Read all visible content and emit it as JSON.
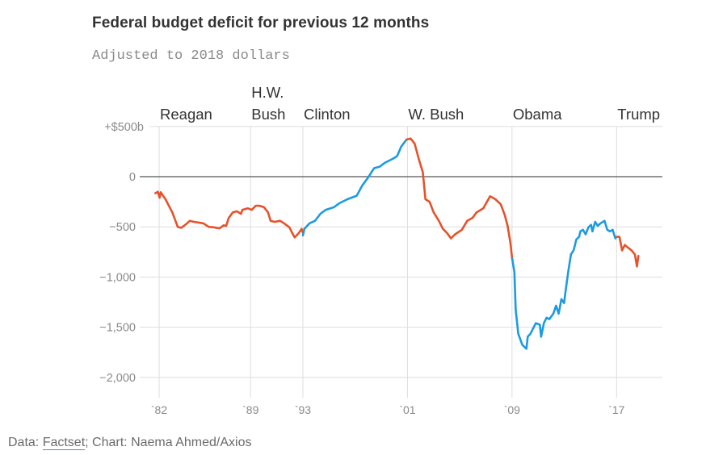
{
  "title": "Federal budget deficit for previous 12 months",
  "subtitle": "Adjusted to 2018 dollars",
  "footer": {
    "prefix": "Data: ",
    "link_label": "Factset",
    "suffix": "; Chart: Naema Ahmed/Axios"
  },
  "colors": {
    "democrat": "#1d9be0",
    "republican": "#e5522b",
    "link_underline": "#1d9be0"
  },
  "chart_data": {
    "type": "line",
    "title": "Federal budget deficit for previous 12 months",
    "subtitle": "Adjusted to 2018 dollars",
    "xlabel": "",
    "ylabel": "",
    "xlim": [
      1980.5,
      2020.5
    ],
    "ylim": [
      -2000,
      500
    ],
    "grid": true,
    "legend": "none",
    "yticks": [
      {
        "value": 500,
        "label": "+$500b"
      },
      {
        "value": 0,
        "label": "0"
      },
      {
        "value": -500,
        "label": "−500"
      },
      {
        "value": -1000,
        "label": "−1,000"
      },
      {
        "value": -1500,
        "label": "−1,500"
      },
      {
        "value": -2000,
        "label": "−2,000"
      }
    ],
    "xticks": [
      {
        "year": 1982,
        "label": "`82"
      },
      {
        "year": 1989,
        "label": "`89"
      },
      {
        "year": 1993,
        "label": "`93"
      },
      {
        "year": 2001,
        "label": "`01"
      },
      {
        "year": 2009,
        "label": "`09"
      },
      {
        "year": 2017,
        "label": "`17"
      }
    ],
    "annotations": [
      {
        "year": 1982,
        "lines": [
          "Reagan"
        ]
      },
      {
        "year": 1989,
        "lines": [
          "H.W.",
          "Bush"
        ]
      },
      {
        "year": 1993,
        "lines": [
          "Clinton"
        ]
      },
      {
        "year": 2001,
        "lines": [
          "W. Bush"
        ]
      },
      {
        "year": 2009,
        "lines": [
          "Obama"
        ]
      },
      {
        "year": 2017,
        "lines": [
          "Trump"
        ]
      }
    ],
    "series": [
      {
        "name": "Reagan / H.W. Bush",
        "party": "republican",
        "color": "#e5522b",
        "points": [
          [
            1981.71,
            -165
          ],
          [
            1981.9,
            -150
          ],
          [
            1982.04,
            -210
          ],
          [
            1982.12,
            -155
          ],
          [
            1982.49,
            -225
          ],
          [
            1983.01,
            -355
          ],
          [
            1983.42,
            -500
          ],
          [
            1983.69,
            -510
          ],
          [
            1984.0,
            -480
          ],
          [
            1984.35,
            -440
          ],
          [
            1984.66,
            -450
          ],
          [
            1985.38,
            -465
          ],
          [
            1985.79,
            -500
          ],
          [
            1986.2,
            -505
          ],
          [
            1986.62,
            -515
          ],
          [
            1986.93,
            -485
          ],
          [
            1987.13,
            -490
          ],
          [
            1987.33,
            -410
          ],
          [
            1987.64,
            -355
          ],
          [
            1987.95,
            -345
          ],
          [
            1988.26,
            -370
          ],
          [
            1988.37,
            -330
          ],
          [
            1988.78,
            -315
          ],
          [
            1989.09,
            -330
          ],
          [
            1989.4,
            -290
          ],
          [
            1989.71,
            -290
          ],
          [
            1990.02,
            -305
          ],
          [
            1990.33,
            -355
          ],
          [
            1990.53,
            -440
          ],
          [
            1990.84,
            -450
          ],
          [
            1991.25,
            -440
          ],
          [
            1991.56,
            -465
          ],
          [
            1991.97,
            -505
          ],
          [
            1992.18,
            -560
          ],
          [
            1992.38,
            -605
          ],
          [
            1992.69,
            -560
          ],
          [
            1992.9,
            -520
          ],
          [
            1993.0,
            -560
          ]
        ]
      },
      {
        "name": "Clinton",
        "party": "democrat",
        "color": "#1d9be0",
        "points": [
          [
            1993.0,
            -585
          ],
          [
            1993.11,
            -520
          ],
          [
            1993.51,
            -465
          ],
          [
            1993.93,
            -440
          ],
          [
            1994.34,
            -370
          ],
          [
            1994.75,
            -330
          ],
          [
            1995.37,
            -305
          ],
          [
            1995.78,
            -265
          ],
          [
            1996.4,
            -225
          ],
          [
            1997.12,
            -190
          ],
          [
            1997.53,
            -90
          ],
          [
            1997.95,
            -15
          ],
          [
            1998.25,
            45
          ],
          [
            1998.46,
            85
          ],
          [
            1998.87,
            100
          ],
          [
            1999.29,
            140
          ],
          [
            1999.9,
            180
          ],
          [
            2000.21,
            205
          ],
          [
            2000.52,
            300
          ],
          [
            2000.93,
            370
          ]
        ]
      },
      {
        "name": "W. Bush",
        "party": "republican",
        "color": "#e5522b",
        "points": [
          [
            2000.93,
            370
          ],
          [
            2001.24,
            380
          ],
          [
            2001.55,
            330
          ],
          [
            2001.86,
            180
          ],
          [
            2002.17,
            45
          ],
          [
            2002.38,
            -225
          ],
          [
            2002.69,
            -250
          ],
          [
            2003.0,
            -355
          ],
          [
            2003.4,
            -440
          ],
          [
            2003.71,
            -520
          ],
          [
            2004.02,
            -560
          ],
          [
            2004.33,
            -615
          ],
          [
            2004.64,
            -575
          ],
          [
            2005.16,
            -530
          ],
          [
            2005.57,
            -440
          ],
          [
            2005.98,
            -410
          ],
          [
            2006.29,
            -355
          ],
          [
            2006.8,
            -315
          ],
          [
            2007.32,
            -195
          ],
          [
            2007.73,
            -225
          ],
          [
            2008.14,
            -275
          ],
          [
            2008.45,
            -385
          ],
          [
            2008.66,
            -490
          ],
          [
            2008.87,
            -655
          ],
          [
            2009.01,
            -815
          ]
        ]
      },
      {
        "name": "Obama",
        "party": "democrat",
        "color": "#1d9be0",
        "points": [
          [
            2009.01,
            -815
          ],
          [
            2009.18,
            -950
          ],
          [
            2009.28,
            -1325
          ],
          [
            2009.48,
            -1565
          ],
          [
            2009.79,
            -1675
          ],
          [
            2010.1,
            -1715
          ],
          [
            2010.2,
            -1595
          ],
          [
            2010.41,
            -1565
          ],
          [
            2010.82,
            -1460
          ],
          [
            2011.13,
            -1475
          ],
          [
            2011.23,
            -1595
          ],
          [
            2011.44,
            -1460
          ],
          [
            2011.65,
            -1405
          ],
          [
            2011.85,
            -1420
          ],
          [
            2012.16,
            -1365
          ],
          [
            2012.37,
            -1285
          ],
          [
            2012.57,
            -1365
          ],
          [
            2012.78,
            -1220
          ],
          [
            2012.98,
            -1260
          ],
          [
            2013.09,
            -1150
          ],
          [
            2013.3,
            -950
          ],
          [
            2013.51,
            -775
          ],
          [
            2013.71,
            -735
          ],
          [
            2013.92,
            -625
          ],
          [
            2014.13,
            -600
          ],
          [
            2014.23,
            -545
          ],
          [
            2014.43,
            -530
          ],
          [
            2014.63,
            -575
          ],
          [
            2014.84,
            -505
          ],
          [
            2015.05,
            -480
          ],
          [
            2015.15,
            -545
          ],
          [
            2015.36,
            -450
          ],
          [
            2015.56,
            -490
          ],
          [
            2015.77,
            -465
          ],
          [
            2016.08,
            -440
          ],
          [
            2016.29,
            -530
          ],
          [
            2016.49,
            -545
          ],
          [
            2016.7,
            -530
          ],
          [
            2016.91,
            -615
          ],
          [
            2017.0,
            -600
          ]
        ]
      },
      {
        "name": "Trump",
        "party": "republican",
        "color": "#e5522b",
        "points": [
          [
            2017.0,
            -600
          ],
          [
            2017.22,
            -600
          ],
          [
            2017.42,
            -735
          ],
          [
            2017.63,
            -680
          ],
          [
            2017.85,
            -705
          ],
          [
            2018.15,
            -735
          ],
          [
            2018.4,
            -775
          ],
          [
            2018.56,
            -895
          ],
          [
            2018.67,
            -790
          ]
        ]
      }
    ]
  }
}
